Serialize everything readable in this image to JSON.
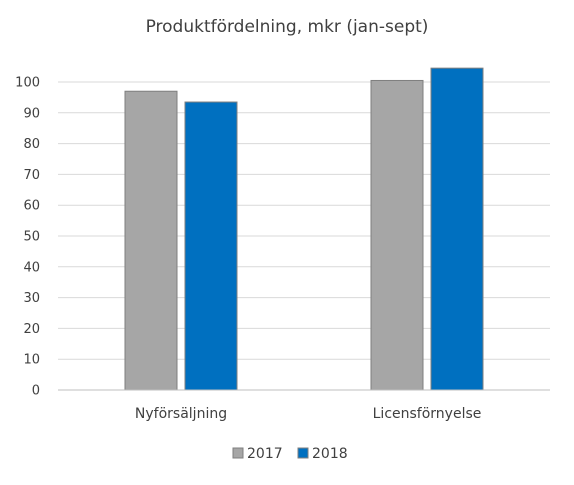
{
  "chart_data": {
    "type": "bar",
    "title": "Produktfördelning, mkr (jan-sept)",
    "categories": [
      "Nyförsäljning",
      "Licensförnyelse"
    ],
    "series": [
      {
        "name": "2017",
        "values": [
          97,
          100.5
        ],
        "color": "#a6a6a6"
      },
      {
        "name": "2018",
        "values": [
          93.5,
          104.5
        ],
        "color": "#0070c0"
      }
    ],
    "ylim": [
      0,
      100
    ],
    "yticks": [
      0,
      10,
      20,
      30,
      40,
      50,
      60,
      70,
      80,
      90,
      100
    ],
    "grid": true,
    "legend": "bottom"
  }
}
